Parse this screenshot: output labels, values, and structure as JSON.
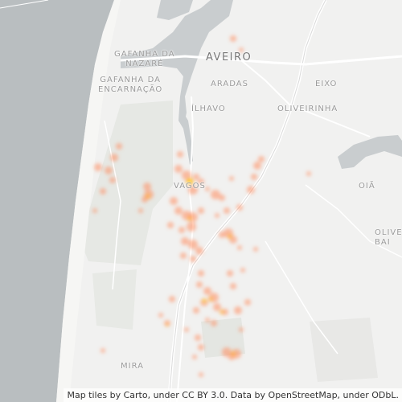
{
  "map": {
    "place_labels": {
      "gafanha_nazare": "GAFANHA DA\nNAZARÉ",
      "aveiro": "AVEIRO",
      "gafanha_encarnacao": "GAFANHA DA\nENCARNAÇÃO",
      "aradas": "ARADAS",
      "eixo": "EIXO",
      "ilhavo": "ÍLHAVO",
      "oliveirinha": "OLIVEIRINHA",
      "vagos": "VAGOS",
      "oia": "OIÃ",
      "oliveira_bairro": "OLIVE\nBAI",
      "mira": "MIRA"
    },
    "attribution": "Map tiles by Carto, under CC BY 3.0. Data by OpenStreetMap, under ODbL.",
    "colors": {
      "sea": "#b9bec0",
      "land": "#f0f0ef",
      "water": "#c9cdcf",
      "hotspot_outer": "#ff8a5c",
      "hotspot_peak": "#ffd400"
    }
  }
}
